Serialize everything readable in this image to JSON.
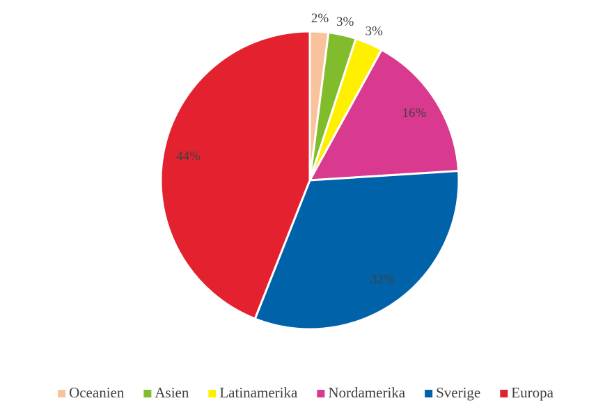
{
  "chart_data": {
    "type": "pie",
    "categories": [
      "Oceanien",
      "Asien",
      "Latinamerika",
      "Nordamerika",
      "Sverige",
      "Europa"
    ],
    "values": [
      2,
      3,
      3,
      16,
      32,
      44
    ],
    "value_labels": [
      "2%",
      "3%",
      "3%",
      "16%",
      "32%",
      "44%"
    ],
    "colors": [
      "#f8c39c",
      "#80bc2c",
      "#fff000",
      "#d9398f",
      "#0062a8",
      "#e3212f"
    ],
    "legend": "bottom"
  }
}
